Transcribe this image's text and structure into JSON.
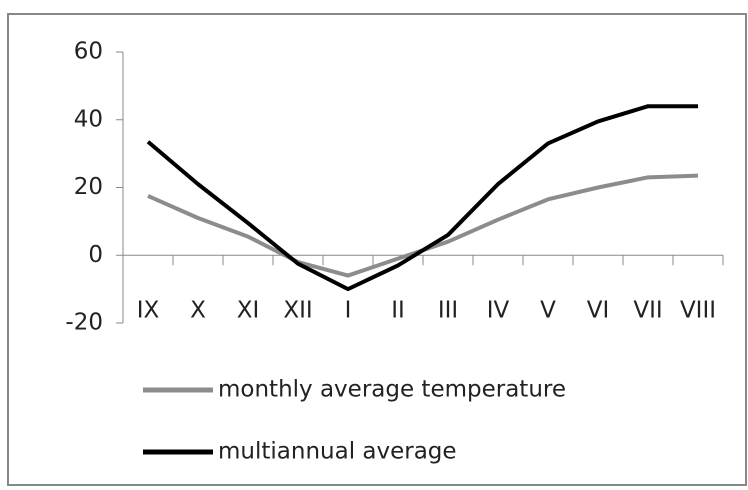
{
  "chart_data": {
    "type": "line",
    "categories": [
      "IX",
      "X",
      "XI",
      "XII",
      "I",
      "II",
      "III",
      "IV",
      "V",
      "VI",
      "VII",
      "VIII"
    ],
    "series": [
      {
        "name": "monthly average temperature",
        "color": "#8c8c8c",
        "values": [
          17.5,
          11,
          5.5,
          -2,
          -6,
          -1,
          4,
          10.5,
          16.5,
          20,
          23,
          23.5
        ]
      },
      {
        "name": "multiannual average",
        "color": "#000000",
        "values": [
          33.5,
          21,
          9.5,
          -2.5,
          -10,
          -3,
          6,
          21,
          33,
          39.5,
          44,
          44
        ]
      }
    ],
    "ylim": [
      -20,
      60
    ],
    "yticks": [
      -20,
      0,
      20,
      40,
      60
    ],
    "grid": false,
    "legend": "bottom"
  }
}
